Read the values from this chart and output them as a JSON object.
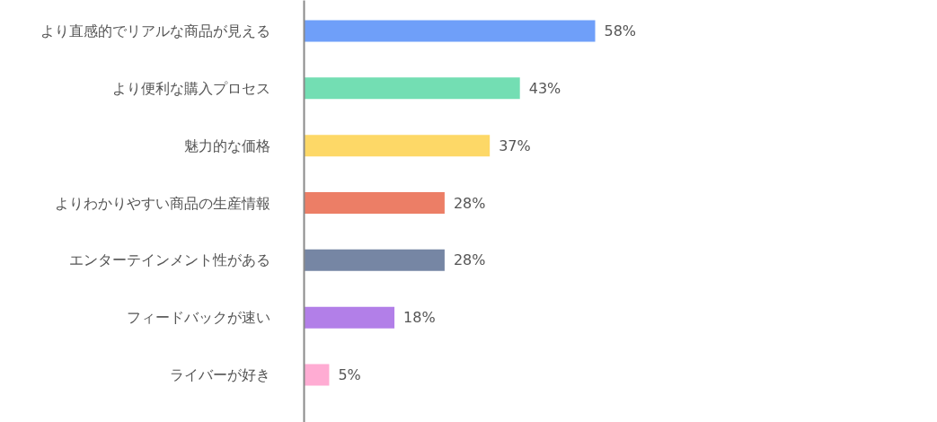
{
  "chart_data": {
    "type": "bar",
    "orientation": "horizontal",
    "tick_labels": "y",
    "categories": [
      "より直感的でリアルな商品が見える",
      "より便利な購入プロセス",
      "魅力的な価格",
      "よりわかりやすい商品の生産情報",
      "エンターテインメント性がある",
      "フィードバックが速い",
      "ライバーが好き"
    ],
    "colors": [
      "#6f9ff9",
      "#73deb3",
      "#fdd867",
      "#ec7e66",
      "#7686a4",
      "#b27fe8",
      "#ffacd3"
    ],
    "values": [
      58,
      43,
      37,
      28,
      28,
      18,
      5
    ],
    "value_labels": [
      "58%",
      "43%",
      "37%",
      "28%",
      "28%",
      "18%",
      "5%"
    ]
  }
}
